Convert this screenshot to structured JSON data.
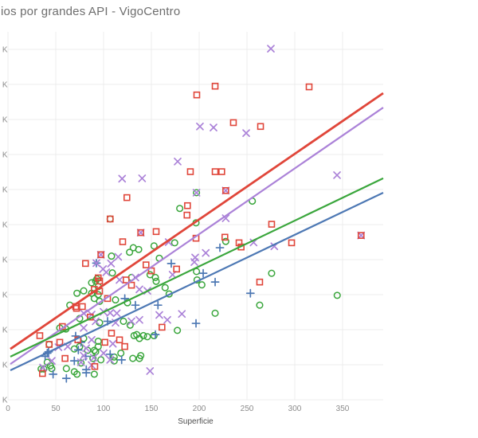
{
  "title": "ios por grandes API - VigoCentro",
  "chart_data": {
    "type": "scatter",
    "title": "ios por grandes API - VigoCentro",
    "xlabel": "Superficie",
    "ylabel": "",
    "grid": true,
    "legend_position": "none-visible",
    "xlim": [
      0,
      392.5
    ],
    "ylim": [
      0,
      1050
    ],
    "x_axis": {
      "ticks": [
        0,
        50,
        100,
        150,
        200,
        250,
        300,
        350
      ]
    },
    "y_axis": {
      "tick_label": "K",
      "note": "numeric part cropped off left edge",
      "gridline_values": [
        0,
        100,
        200,
        300,
        400,
        500,
        600,
        700,
        800,
        900,
        1000
      ]
    },
    "series": [
      {
        "name": "red-squares",
        "marker": "square",
        "color": "#e0463a",
        "points": [
          [
            216.7,
            895
          ],
          [
            197.5,
            870
          ],
          [
            315,
            893
          ],
          [
            235.8,
            791
          ],
          [
            264.2,
            780
          ],
          [
            190.8,
            651
          ],
          [
            216.7,
            651
          ],
          [
            223.6,
            651
          ],
          [
            227.8,
            597
          ],
          [
            187.8,
            554
          ],
          [
            187.3,
            527
          ],
          [
            275.8,
            501
          ],
          [
            296.7,
            448
          ],
          [
            369.4,
            469
          ],
          [
            124.4,
            577
          ],
          [
            120,
            451
          ],
          [
            106.9,
            516
          ],
          [
            97.2,
            414
          ],
          [
            81.1,
            389
          ],
          [
            138.9,
            477
          ],
          [
            155,
            480
          ],
          [
            196.7,
            461
          ],
          [
            226.9,
            464
          ],
          [
            241.7,
            448
          ],
          [
            243.9,
            436
          ],
          [
            144.4,
            385
          ],
          [
            150,
            368
          ],
          [
            176.4,
            373
          ],
          [
            94.4,
            348
          ],
          [
            123.6,
            342
          ],
          [
            263.3,
            336
          ],
          [
            71.7,
            261
          ],
          [
            77.8,
            266
          ],
          [
            90.3,
            315
          ],
          [
            95.8,
            310
          ],
          [
            56.9,
            209
          ],
          [
            33.3,
            183
          ],
          [
            54.2,
            164
          ],
          [
            73.1,
            171
          ],
          [
            59.7,
            118
          ],
          [
            90.8,
            95
          ],
          [
            95.8,
            339
          ],
          [
            129.2,
            327
          ],
          [
            104.2,
            289
          ],
          [
            70.8,
            266
          ],
          [
            86.1,
            236
          ],
          [
            108.3,
            190
          ],
          [
            116.7,
            171
          ],
          [
            101.4,
            164
          ],
          [
            122.2,
            152
          ],
          [
            161.1,
            207
          ],
          [
            43.1,
            158
          ],
          [
            36.1,
            75
          ]
        ]
      },
      {
        "name": "green-circles",
        "marker": "circle",
        "color": "#3aa63c",
        "points": [
          [
            255.6,
            567
          ],
          [
            197.2,
            591
          ],
          [
            179.7,
            546
          ],
          [
            196.7,
            505
          ],
          [
            174.4,
            448
          ],
          [
            152.8,
            439
          ],
          [
            136.7,
            429
          ],
          [
            227.8,
            452
          ],
          [
            158.3,
            404
          ],
          [
            127.2,
            421
          ],
          [
            131.1,
            434
          ],
          [
            108.3,
            410
          ],
          [
            109.2,
            362
          ],
          [
            129.2,
            349
          ],
          [
            148.6,
            357
          ],
          [
            154.2,
            349
          ],
          [
            155,
            338
          ],
          [
            197.2,
            366
          ],
          [
            197.8,
            342
          ],
          [
            275.8,
            361
          ],
          [
            344.4,
            298
          ],
          [
            263.3,
            270
          ],
          [
            168.6,
            302
          ],
          [
            164.4,
            320
          ],
          [
            202.8,
            328
          ],
          [
            216.7,
            247
          ],
          [
            177.2,
            198
          ],
          [
            64.7,
            270
          ],
          [
            87.5,
            334
          ],
          [
            91.7,
            339
          ],
          [
            94.4,
            323
          ],
          [
            87.5,
            304
          ],
          [
            90.3,
            289
          ],
          [
            94.4,
            300
          ],
          [
            95.8,
            281
          ],
          [
            54.2,
            205
          ],
          [
            60.6,
            202
          ],
          [
            69.4,
            145
          ],
          [
            75,
            152
          ],
          [
            90.3,
            141
          ],
          [
            94.4,
            152
          ],
          [
            76.4,
            105
          ],
          [
            93.1,
            345
          ],
          [
            112.5,
            285
          ],
          [
            125,
            277
          ],
          [
            72.2,
            304
          ],
          [
            79.2,
            311
          ],
          [
            75,
            232
          ],
          [
            95.8,
            220
          ],
          [
            120.8,
            224
          ],
          [
            127.8,
            213
          ],
          [
            134.7,
            186
          ],
          [
            141.7,
            183
          ],
          [
            145.8,
            180
          ],
          [
            131.9,
            183
          ],
          [
            137.5,
            175
          ],
          [
            79.2,
            175
          ],
          [
            94.4,
            167
          ],
          [
            83.3,
            141
          ],
          [
            91.7,
            137
          ],
          [
            88.9,
            118
          ],
          [
            97.2,
            114
          ],
          [
            111.1,
            122
          ],
          [
            118.1,
            133
          ],
          [
            130.6,
            118
          ],
          [
            138.9,
            126
          ],
          [
            137.5,
            118
          ],
          [
            111.1,
            111
          ],
          [
            152.8,
            183
          ],
          [
            37.5,
            88
          ],
          [
            45.8,
            89
          ],
          [
            61.1,
            89
          ],
          [
            69.4,
            80
          ],
          [
            72.2,
            73
          ],
          [
            90.3,
            73
          ],
          [
            41.1,
            107
          ],
          [
            44.4,
            97
          ],
          [
            34.7,
            88
          ],
          [
            43.1,
            158
          ],
          [
            106.9,
            516
          ]
        ]
      },
      {
        "name": "purple-x",
        "marker": "x",
        "color": "#ab82d8",
        "points": [
          [
            275,
            1002
          ],
          [
            200.8,
            780
          ],
          [
            215,
            777
          ],
          [
            249.2,
            761
          ],
          [
            177.5,
            680
          ],
          [
            344.2,
            641
          ],
          [
            140.3,
            632
          ],
          [
            119.4,
            631
          ],
          [
            197.2,
            591
          ],
          [
            227.8,
            597
          ],
          [
            227.8,
            518
          ],
          [
            256.9,
            449
          ],
          [
            278.6,
            438
          ],
          [
            168.1,
            450
          ],
          [
            115.3,
            408
          ],
          [
            107.8,
            389
          ],
          [
            92.5,
            390
          ],
          [
            99.4,
            373
          ],
          [
            102.8,
            364
          ],
          [
            116.7,
            342
          ],
          [
            206.9,
            419
          ],
          [
            195.8,
            406
          ],
          [
            195,
            393
          ],
          [
            172.2,
            357
          ],
          [
            133.3,
            349
          ],
          [
            137.5,
            315
          ],
          [
            145.8,
            311
          ],
          [
            100,
            251
          ],
          [
            106.9,
            248
          ],
          [
            113.9,
            247
          ],
          [
            91.7,
            224
          ],
          [
            112.5,
            220
          ],
          [
            129.2,
            224
          ],
          [
            137.5,
            228
          ],
          [
            79.2,
            247
          ],
          [
            87.5,
            243
          ],
          [
            79.2,
            205
          ],
          [
            87.5,
            171
          ],
          [
            109.7,
            160
          ],
          [
            52.8,
            150
          ],
          [
            62.5,
            152
          ],
          [
            81.9,
            147
          ],
          [
            89.7,
            120
          ],
          [
            100,
            133
          ],
          [
            106.9,
            114
          ],
          [
            45.8,
            111
          ],
          [
            87.5,
            99
          ],
          [
            79.2,
            126
          ],
          [
            76.4,
            107
          ],
          [
            158.3,
            242
          ],
          [
            166.7,
            228
          ],
          [
            181.9,
            245
          ],
          [
            36.7,
            92
          ],
          [
            369.4,
            469
          ],
          [
            97.2,
            414
          ],
          [
            138.9,
            477
          ],
          [
            148.6,
            82
          ]
        ]
      },
      {
        "name": "blue-plus",
        "marker": "plus",
        "color": "#4d78b4",
        "points": [
          [
            221.7,
            434
          ],
          [
            170.8,
            389
          ],
          [
            92.5,
            390
          ],
          [
            216.7,
            336
          ],
          [
            253.6,
            304
          ],
          [
            196.7,
            218
          ],
          [
            204.2,
            361
          ],
          [
            122.2,
            289
          ],
          [
            133.3,
            270
          ],
          [
            156.9,
            270
          ],
          [
            104.2,
            224
          ],
          [
            154.2,
            186
          ],
          [
            70.8,
            182
          ],
          [
            42.5,
            137
          ],
          [
            38.9,
            124
          ],
          [
            73.6,
            142
          ],
          [
            81.4,
            124
          ],
          [
            69.4,
            111
          ],
          [
            106.9,
            130
          ],
          [
            41.1,
            133
          ],
          [
            47.2,
            73
          ],
          [
            61.1,
            61
          ],
          [
            81.9,
            77
          ],
          [
            81.9,
            86
          ],
          [
            76.4,
            164
          ],
          [
            118.9,
            114
          ]
        ]
      }
    ],
    "trend_lines": [
      {
        "series": "red-squares",
        "color": "#e0463a",
        "from": [
          2.5,
          145
        ],
        "to": [
          392.5,
          875
        ],
        "width": 2.8
      },
      {
        "series": "purple-x",
        "color": "#ab82d8",
        "from": [
          2.5,
          102
        ],
        "to": [
          392.5,
          834
        ],
        "width": 2.2
      },
      {
        "series": "green-circles",
        "color": "#3aa63c",
        "from": [
          2.5,
          123
        ],
        "to": [
          392.5,
          632
        ],
        "width": 2.2
      },
      {
        "series": "blue-plus",
        "color": "#4d78b4",
        "from": [
          2.5,
          84
        ],
        "to": [
          392.5,
          591
        ],
        "width": 2.2
      }
    ]
  },
  "colors": {
    "background": "#ffffff",
    "gridline": "#ececec",
    "tick_text": "#8b8b8b",
    "axis_title_text": "#4f4f4f",
    "title_text": "#6e6e6e"
  }
}
